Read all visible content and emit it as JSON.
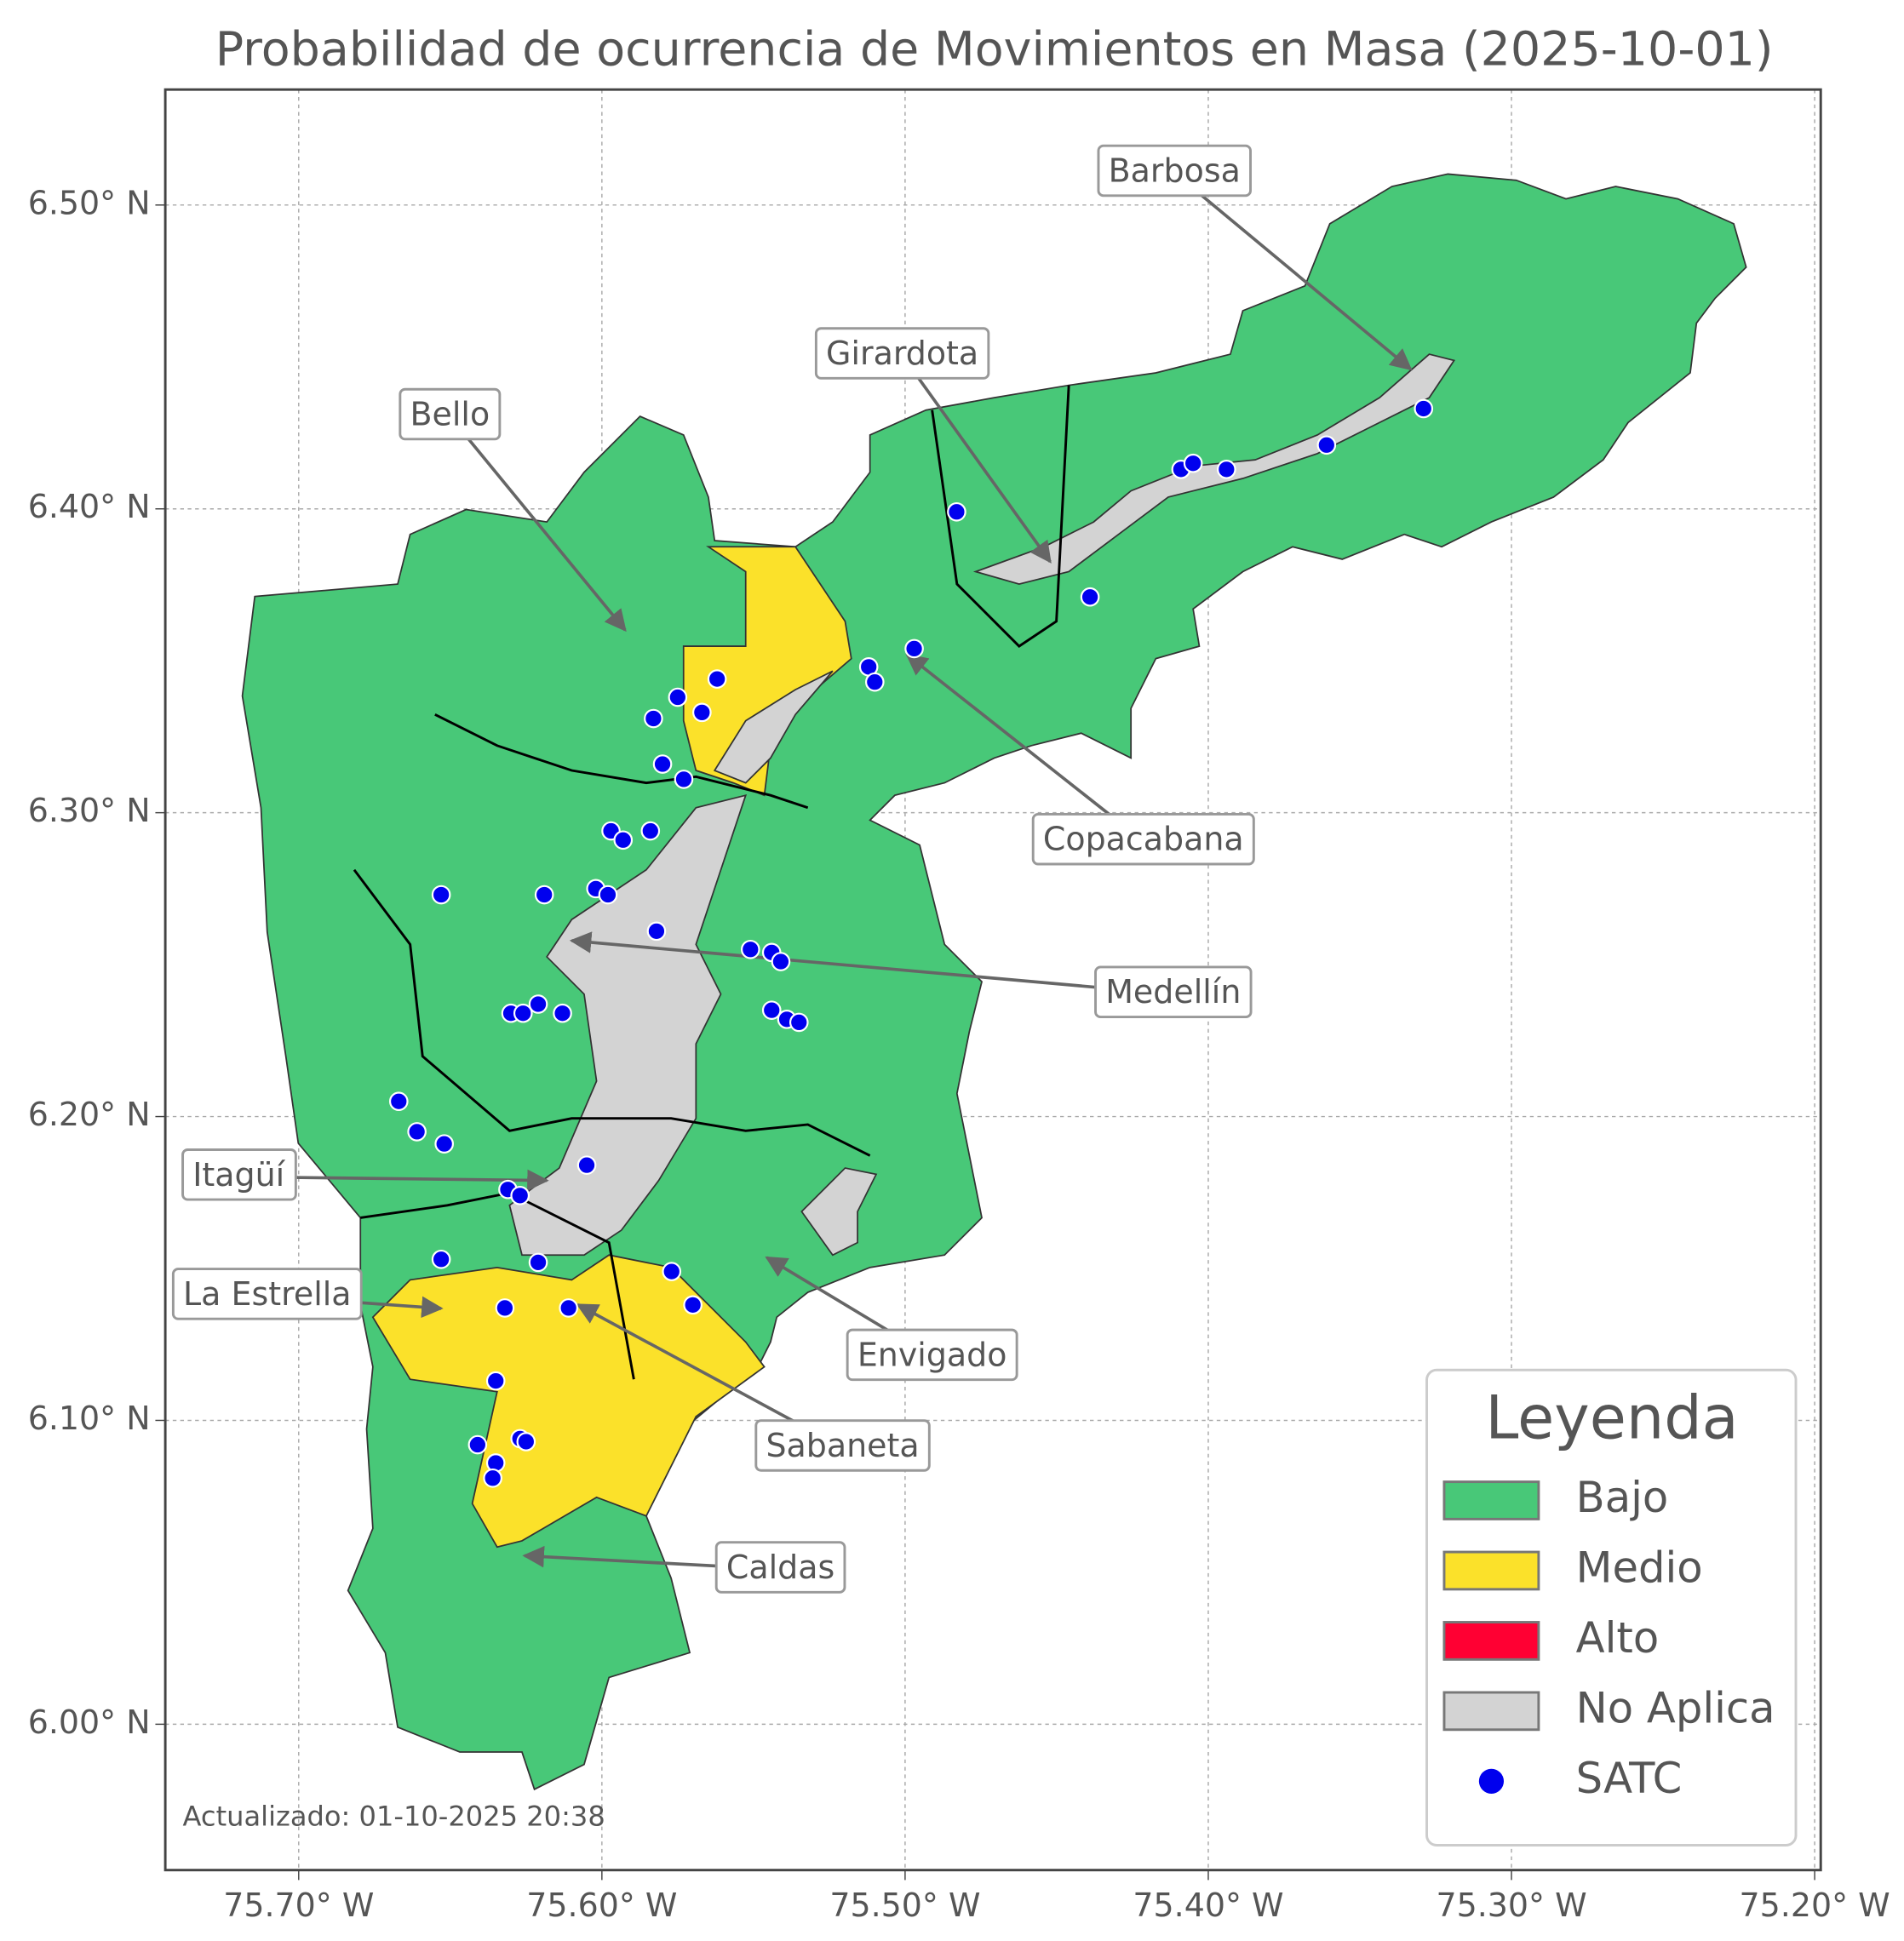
{
  "chart_data": {
    "type": "map",
    "title": "Probabilidad de ocurrencia de Movimientos en Masa (2025-10-01)",
    "xlim": [
      -75.744,
      -75.198
    ],
    "ylim": [
      5.952,
      6.538
    ],
    "xticks": [
      {
        "value": -75.7,
        "label": "75.70° W"
      },
      {
        "value": -75.6,
        "label": "75.60° W"
      },
      {
        "value": -75.5,
        "label": "75.50° W"
      },
      {
        "value": -75.4,
        "label": "75.40° W"
      },
      {
        "value": -75.3,
        "label": "75.30° W"
      },
      {
        "value": -75.2,
        "label": "75.20° W"
      }
    ],
    "yticks": [
      {
        "value": 6.0,
        "label": "6.00° N"
      },
      {
        "value": 6.1,
        "label": "6.10° N"
      },
      {
        "value": 6.2,
        "label": "6.20° N"
      },
      {
        "value": 6.3,
        "label": "6.30° N"
      },
      {
        "value": 6.4,
        "label": "6.40° N"
      },
      {
        "value": 6.5,
        "label": "6.50° N"
      }
    ],
    "grid": true,
    "annotations": [
      "Barbosa",
      "Girardota",
      "Bello",
      "Copacabana",
      "Medellín",
      "Itagüí",
      "La Estrella",
      "Envigado",
      "Sabaneta",
      "Caldas"
    ],
    "legend": {
      "title": "Leyenda",
      "corner": "lower right",
      "items": [
        {
          "name": "Bajo",
          "color": "#48c878"
        },
        {
          "name": "Medio",
          "color": "#fbe12a"
        },
        {
          "name": "Alto",
          "color": "#ff0033"
        },
        {
          "name": "No Aplica",
          "color": "#d3d3d3"
        }
      ]
    },
    "series": [
      {
        "name": "SATC",
        "color": "#0000ee",
        "lon": [
          -75.329,
          -75.361,
          -75.409,
          -75.405,
          -75.394,
          -75.483,
          -75.439,
          -75.497,
          -75.512,
          -75.51,
          -75.562,
          -75.575,
          -75.567,
          -75.583,
          -75.58,
          -75.573,
          -75.597,
          -75.593,
          -75.584,
          -75.653,
          -75.619,
          -75.602,
          -75.598,
          -75.582,
          -75.551,
          -75.544,
          -75.541,
          -75.621,
          -75.63,
          -75.626,
          -75.613,
          -75.544,
          -75.539,
          -75.535,
          -75.667,
          -75.661,
          -75.652,
          -75.605,
          -75.631,
          -75.627,
          -75.653,
          -75.621,
          -75.577,
          -75.57,
          -75.632,
          -75.611,
          -75.635,
          -75.641,
          -75.627,
          -75.625,
          -75.635,
          -75.636
        ],
        "lat": [
          6.433,
          6.421,
          6.413,
          6.415,
          6.413,
          6.399,
          6.371,
          6.354,
          6.348,
          6.343,
          6.344,
          6.338,
          6.333,
          6.331,
          6.316,
          6.311,
          6.294,
          6.291,
          6.294,
          6.273,
          6.273,
          6.275,
          6.273,
          6.261,
          6.255,
          6.254,
          6.251,
          6.237,
          6.234,
          6.234,
          6.234,
          6.235,
          6.232,
          6.231,
          6.205,
          6.195,
          6.191,
          6.184,
          6.176,
          6.174,
          6.153,
          6.152,
          6.149,
          6.138,
          6.137,
          6.137,
          6.113,
          6.092,
          6.094,
          6.093,
          6.086,
          6.081
        ]
      }
    ],
    "footnote": "Actualizado: 01-10-2025 20:38"
  }
}
